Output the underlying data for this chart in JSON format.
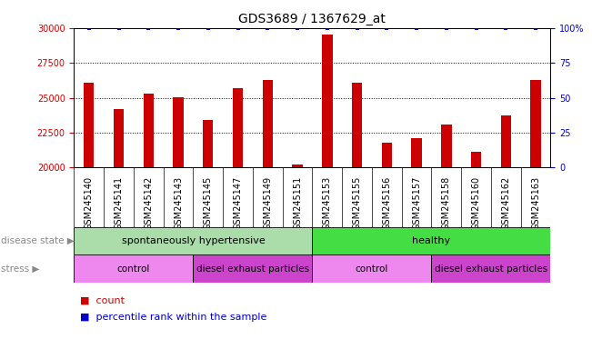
{
  "title": "GDS3689 / 1367629_at",
  "samples": [
    "GSM245140",
    "GSM245141",
    "GSM245142",
    "GSM245143",
    "GSM245145",
    "GSM245147",
    "GSM245149",
    "GSM245151",
    "GSM245153",
    "GSM245155",
    "GSM245156",
    "GSM245157",
    "GSM245158",
    "GSM245160",
    "GSM245162",
    "GSM245163"
  ],
  "counts": [
    26100,
    24200,
    25300,
    25050,
    23400,
    25700,
    26250,
    20200,
    29500,
    26100,
    21800,
    22100,
    23100,
    21100,
    23700,
    26300
  ],
  "bar_color": "#cc0000",
  "dot_color": "#0000cc",
  "ylim_left": [
    20000,
    30000
  ],
  "ylim_right": [
    0,
    100
  ],
  "yticks_left": [
    20000,
    22500,
    25000,
    27500,
    30000
  ],
  "yticks_right": [
    0,
    25,
    50,
    75,
    100
  ],
  "disease_state_groups": [
    {
      "label": "spontaneously hypertensive",
      "start": 0,
      "end": 8,
      "color": "#aaddaa"
    },
    {
      "label": "healthy",
      "start": 8,
      "end": 16,
      "color": "#44dd44"
    }
  ],
  "stress_groups": [
    {
      "label": "control",
      "start": 0,
      "end": 4,
      "color": "#ee88ee"
    },
    {
      "label": "diesel exhaust particles",
      "start": 4,
      "end": 8,
      "color": "#cc44cc"
    },
    {
      "label": "control",
      "start": 8,
      "end": 12,
      "color": "#ee88ee"
    },
    {
      "label": "diesel exhaust particles",
      "start": 12,
      "end": 16,
      "color": "#cc44cc"
    }
  ],
  "title_fontsize": 10,
  "tick_fontsize": 7,
  "bar_width": 0.35
}
